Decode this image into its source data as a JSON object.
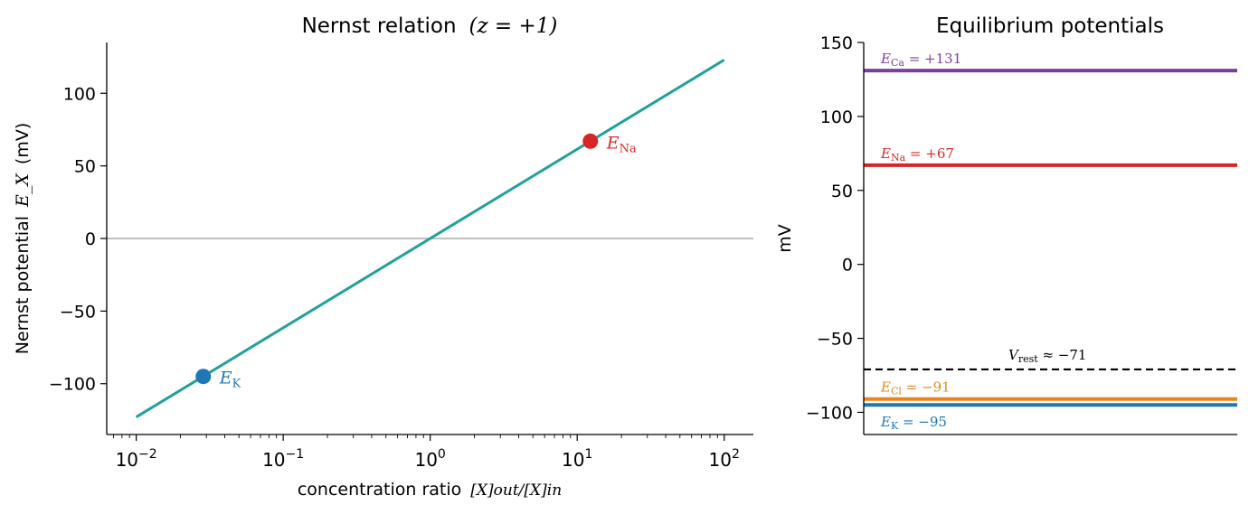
{
  "chart_data": [
    {
      "type": "line",
      "title": "Nernst relation",
      "title_math": "(z = +1)",
      "xlabel": "concentration ratio",
      "xlabel_math": "[X]out/[X]in",
      "ylabel": "Nernst potential",
      "ylabel_math": "E_X",
      "ylabel_unit": "(mV)",
      "xscale": "log",
      "xlim": [
        0.0063,
        158
      ],
      "ylim": [
        -135,
        135
      ],
      "xticks": [
        0.01,
        0.1,
        1,
        10,
        100
      ],
      "xtick_labels": [
        {
          "base": "10",
          "exp": "−2"
        },
        {
          "base": "10",
          "exp": "−1"
        },
        {
          "base": "10",
          "exp": "0"
        },
        {
          "base": "10",
          "exp": "1"
        },
        {
          "base": "10",
          "exp": "2"
        }
      ],
      "yticks": [
        -100,
        -50,
        0,
        50,
        100
      ],
      "ytick_labels": [
        "−100",
        "−50",
        "0",
        "50",
        "100"
      ],
      "zero_line": true,
      "series": [
        {
          "x": [
            0.01,
            100
          ],
          "y": [
            -123,
            123
          ],
          "color": "#21a19a"
        }
      ],
      "points": [
        {
          "x": 0.0286,
          "y": -95,
          "label_base": "E",
          "label_sub": "K",
          "color": "#1f77b4"
        },
        {
          "x": 12.3,
          "y": 67,
          "label_base": "E",
          "label_sub": "Na",
          "color": "#d62728"
        }
      ]
    },
    {
      "type": "line",
      "title": "Equilibrium potentials",
      "ylabel": "mV",
      "ylim": [
        -115,
        150
      ],
      "yticks": [
        -100,
        -50,
        0,
        50,
        100,
        150
      ],
      "ytick_labels": [
        "−100",
        "−50",
        "0",
        "50",
        "100",
        "150"
      ],
      "levels": [
        {
          "name": "Ca",
          "value": 131,
          "label_base": "E",
          "label_sub": "Ca",
          "label_rest": " = +131",
          "color": "#7b3f9a"
        },
        {
          "name": "Na",
          "value": 67,
          "label_base": "E",
          "label_sub": "Na",
          "label_rest": " = +67",
          "color": "#d62728"
        },
        {
          "name": "Cl",
          "value": -91,
          "label_base": "E",
          "label_sub": "Cl",
          "label_rest": " = −91",
          "color": "#e6871e"
        },
        {
          "name": "K",
          "value": -95,
          "label_base": "E",
          "label_sub": "K",
          "label_rest": " = −95",
          "color": "#1f77b4"
        }
      ],
      "rest": {
        "value": -71,
        "label_base": "V",
        "label_sub": "rest",
        "label_rest": " ≈ −71",
        "color": "#000000",
        "dashed": true
      }
    }
  ]
}
